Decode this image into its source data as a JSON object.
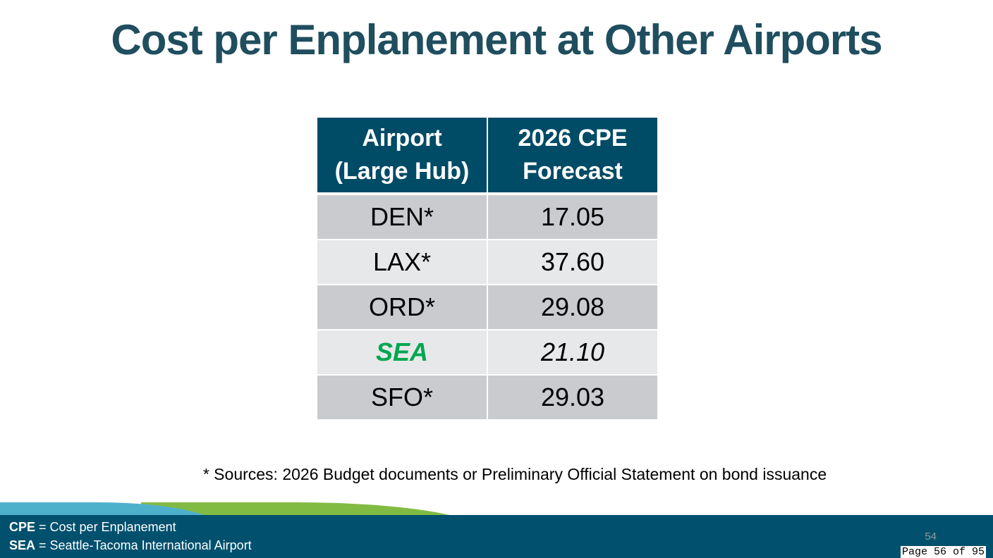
{
  "title": "Cost per Enplanement at Other Airports",
  "table": {
    "headers": [
      "Airport (Large Hub)",
      "2026 CPE Forecast"
    ],
    "header_lines": [
      [
        "Airport",
        "(Large Hub)"
      ],
      [
        "2026 CPE",
        "Forecast"
      ]
    ],
    "rows": [
      {
        "airport": "DEN*",
        "cpe": "17.05"
      },
      {
        "airport": "LAX*",
        "cpe": "37.60"
      },
      {
        "airport": "ORD*",
        "cpe": "29.08"
      },
      {
        "airport": "SEA",
        "cpe": "21.10"
      },
      {
        "airport": "SFO*",
        "cpe": "29.03"
      }
    ]
  },
  "source_note": "* Sources: 2026 Budget documents or Preliminary Official Statement on bond issuance",
  "footer": {
    "definitions": [
      {
        "abbr": "CPE",
        "text": " = Cost per Enplanement"
      },
      {
        "abbr": "SEA",
        "text": " = Seattle-Tacoma International Airport"
      }
    ],
    "slide_number": "54",
    "page_indicator": "Page 56 of 95"
  },
  "colors": {
    "header": "#004b66",
    "highlight": "#00a651",
    "footer": "#00506e"
  }
}
